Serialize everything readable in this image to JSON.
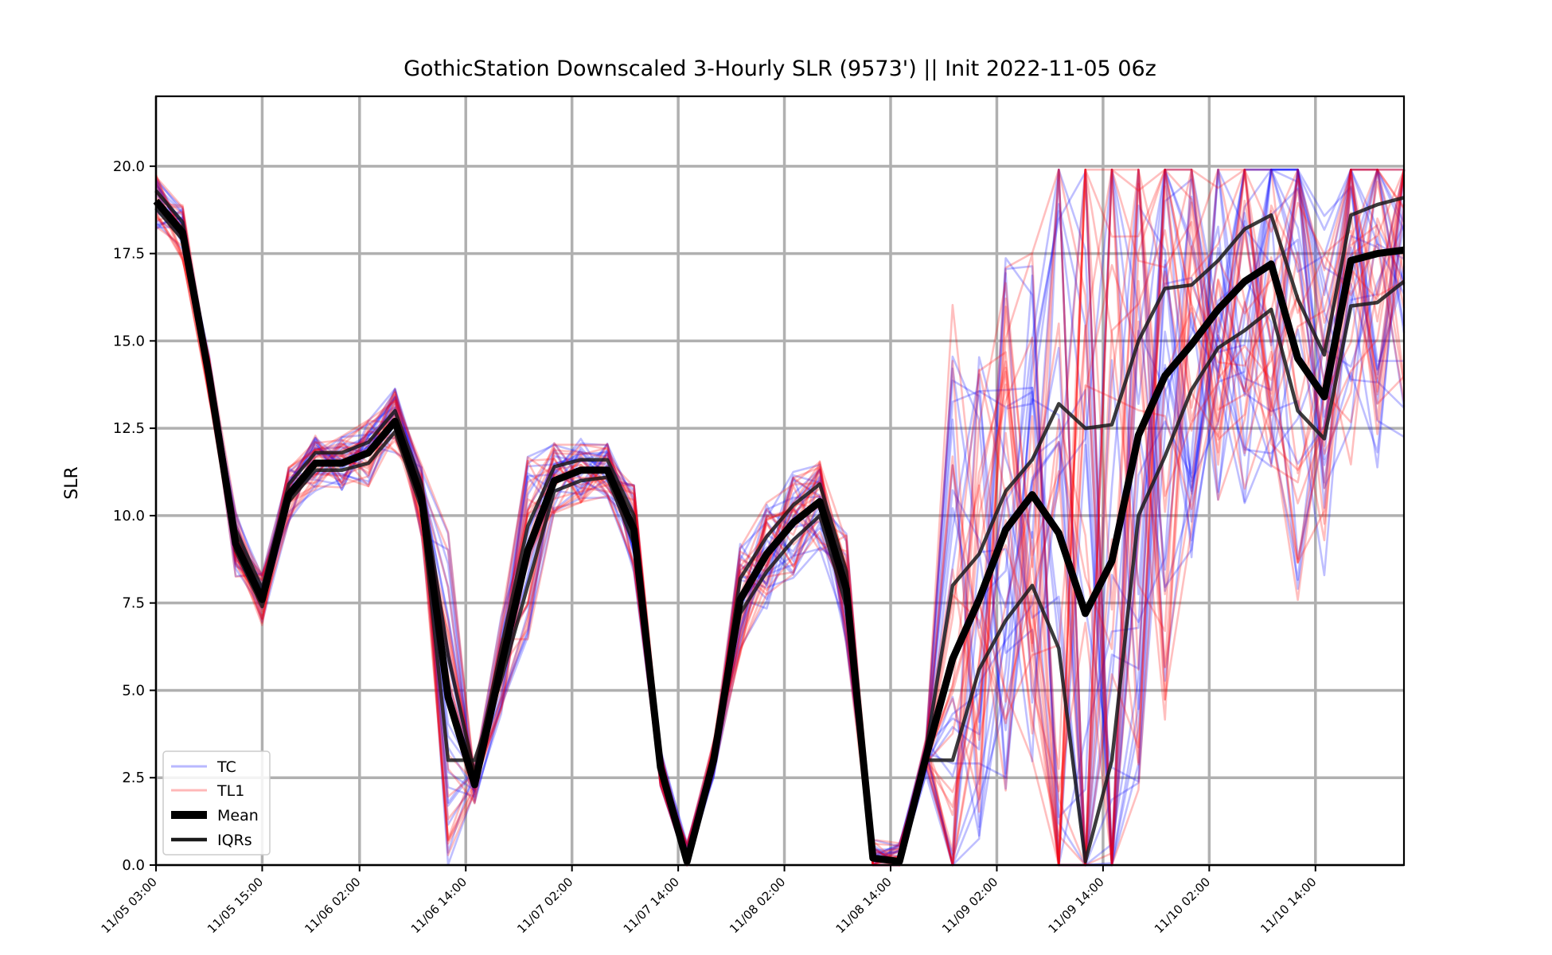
{
  "chart_data": {
    "type": "line",
    "title": "GothicStation Downscaled 3-Hourly SLR (9573') || Init 2022-11-05 06z",
    "ylabel": "SLR",
    "xlabel": "",
    "ylim": [
      0,
      22
    ],
    "yticks": [
      "0.0",
      "2.5",
      "5.0",
      "7.5",
      "10.0",
      "12.5",
      "15.0",
      "17.5",
      "20.0"
    ],
    "ytick_values": [
      0,
      2.5,
      5,
      7.5,
      10,
      12.5,
      15,
      17.5,
      20
    ],
    "xticks": [
      "11/05 03:00",
      "11/05 15:00",
      "11/06 02:00",
      "11/06 14:00",
      "11/07 02:00",
      "11/07 14:00",
      "11/08 02:00",
      "11/08 14:00",
      "11/09 02:00",
      "11/09 14:00",
      "11/10 02:00",
      "11/10 14:00"
    ],
    "x_start": "11/05 03:00",
    "x_end": "11/10 23:00",
    "x_step_hours": 3,
    "grid": true,
    "legend_position": "lower-left",
    "legend": [
      {
        "label": "TC",
        "color": "#0000ff",
        "style": "thin-translucent"
      },
      {
        "label": "TL1",
        "color": "#ff0000",
        "style": "thin-translucent"
      },
      {
        "label": "Mean",
        "color": "#000000",
        "style": "thick"
      },
      {
        "label": "IQRs",
        "color": "#222222",
        "style": "medium"
      }
    ],
    "colors": {
      "TC": "#0000ff",
      "TL1": "#ff0000",
      "Mean": "#000000",
      "IQRs": "#1a1a1a",
      "grid": "#b0b0b0"
    },
    "series": [
      {
        "name": "Mean",
        "values": [
          19.0,
          18.1,
          14.0,
          9.2,
          7.6,
          10.6,
          11.5,
          11.5,
          11.8,
          12.7,
          10.5,
          4.8,
          2.3,
          5.7,
          9.0,
          11.0,
          11.3,
          11.3,
          9.6,
          2.8,
          0.1,
          3.0,
          7.6,
          8.9,
          9.8,
          10.4,
          7.9,
          0.2,
          0.1,
          3.1,
          5.9,
          7.6,
          9.6,
          10.6,
          9.5,
          7.2,
          8.7,
          12.3,
          14.0,
          14.9,
          15.9,
          16.7,
          17.2,
          14.5,
          13.4,
          17.3,
          17.5,
          17.6
        ]
      },
      {
        "name": "IQRs",
        "values": [
          19.3,
          18.4,
          14.2,
          9.6,
          7.9,
          10.9,
          11.8,
          11.8,
          12.1,
          13.0,
          10.9,
          6.0,
          2.6,
          6.2,
          9.7,
          11.4,
          11.6,
          11.6,
          10.0,
          2.8,
          0.1,
          3.0,
          8.2,
          9.4,
          10.3,
          10.9,
          8.4,
          0.2,
          0.1,
          3.3,
          8.0,
          8.9,
          10.7,
          11.6,
          13.2,
          12.5,
          12.6,
          15.0,
          16.5,
          16.6,
          17.3,
          18.2,
          18.6,
          16.2,
          14.6,
          18.6,
          18.9,
          19.1
        ]
      },
      {
        "name": "IQRs",
        "values": [
          18.8,
          17.9,
          13.8,
          9.0,
          7.4,
          10.4,
          11.3,
          11.3,
          11.5,
          12.4,
          10.2,
          3.0,
          3.0,
          5.3,
          8.0,
          10.7,
          11.0,
          11.1,
          9.2,
          2.8,
          0.1,
          3.0,
          7.2,
          8.4,
          9.3,
          10.0,
          7.4,
          0.2,
          0.1,
          3.0,
          3.0,
          5.6,
          7.0,
          8.0,
          6.2,
          0.1,
          3.0,
          10.0,
          11.7,
          13.6,
          14.8,
          15.3,
          15.9,
          13.0,
          12.2,
          16.0,
          16.1,
          16.7
        ]
      }
    ],
    "ensemble_series": "TC and TL1 member traces shown as translucent lines around the mean"
  }
}
